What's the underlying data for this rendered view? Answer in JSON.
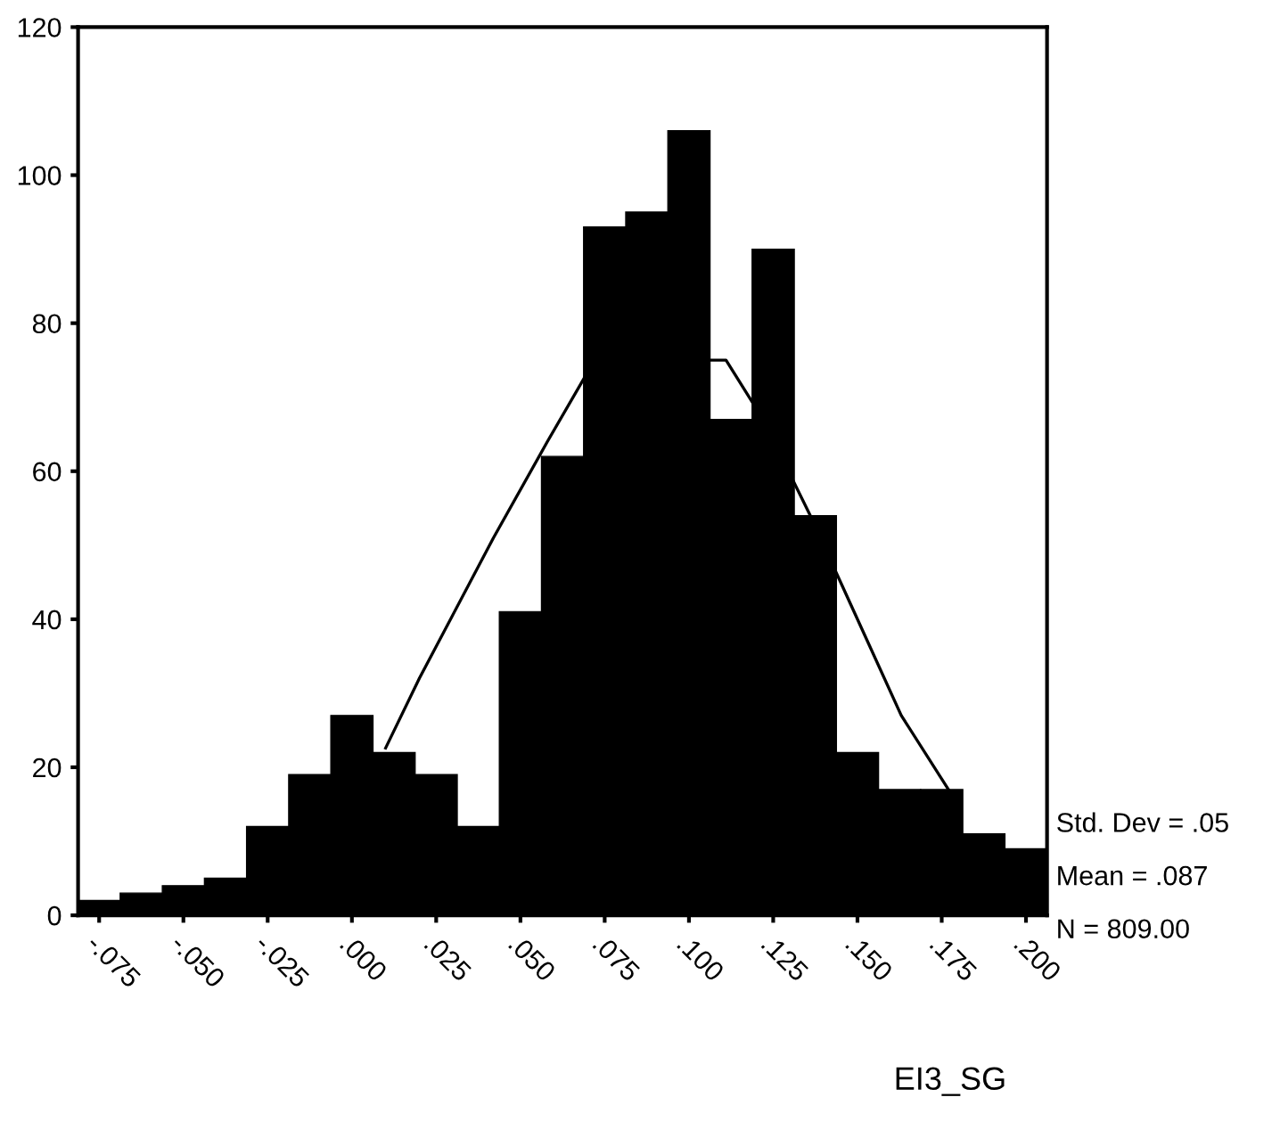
{
  "chart_data": {
    "type": "histogram",
    "xlabel": "EI3_SG",
    "bins": [
      -0.08125,
      -0.06875,
      -0.05625,
      -0.04375,
      -0.03125,
      -0.01875,
      -0.00625,
      0.00625,
      0.01875,
      0.03125,
      0.04375,
      0.05625,
      0.06875,
      0.08125,
      0.09375,
      0.10625,
      0.11875,
      0.13125,
      0.14375,
      0.15625,
      0.16875,
      0.18125,
      0.19375,
      0.20625
    ],
    "values": [
      2,
      3,
      4,
      5,
      12,
      19,
      27,
      22,
      19,
      12,
      41,
      62,
      93,
      95,
      106,
      67,
      90,
      54,
      22,
      17,
      17,
      11,
      9
    ],
    "color": "#000000",
    "series": [
      {
        "type": "line",
        "color": "#000000",
        "x": [
          0.01,
          0.02,
          0.042,
          0.058,
          0.072,
          0.111,
          0.122,
          0.136,
          0.148,
          0.163,
          0.177
        ],
        "values": [
          22.6,
          32,
          51,
          64,
          75,
          75,
          67,
          54,
          42,
          27,
          17
        ]
      }
    ],
    "xlim": [
      -0.08125,
      0.20625
    ],
    "ylim": [
      0,
      120
    ],
    "xticks": [
      {
        "value": -0.075,
        "label": "-.075"
      },
      {
        "value": -0.05,
        "label": "-.050"
      },
      {
        "value": -0.025,
        "label": "-.025"
      },
      {
        "value": 0.0,
        "label": ".000"
      },
      {
        "value": 0.025,
        "label": ".025"
      },
      {
        "value": 0.05,
        "label": ".050"
      },
      {
        "value": 0.075,
        "label": ".075"
      },
      {
        "value": 0.1,
        "label": ".100"
      },
      {
        "value": 0.125,
        "label": ".125"
      },
      {
        "value": 0.15,
        "label": ".150"
      },
      {
        "value": 0.175,
        "label": ".175"
      },
      {
        "value": 0.2,
        "label": ".200"
      }
    ],
    "yticks": [
      0,
      20,
      40,
      60,
      80,
      100,
      120
    ],
    "grid": false,
    "legend": false,
    "annotations": [
      "Std. Dev = .05",
      "Mean = .087",
      "N = 809.00"
    ]
  }
}
